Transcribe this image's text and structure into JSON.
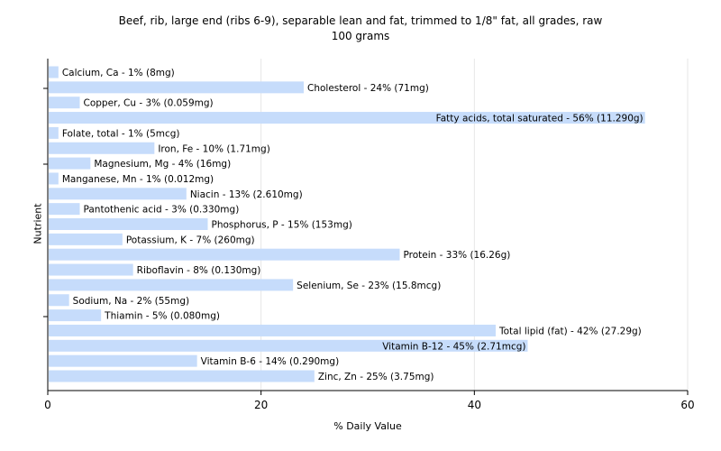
{
  "chart_data": {
    "type": "bar",
    "orientation": "horizontal",
    "title": "Beef, rib, large end (ribs 6-9), separable lean and fat, trimmed to 1/8\" fat, all grades, raw",
    "subtitle": "100 grams",
    "xlabel": "% Daily Value",
    "ylabel": "Nutrient",
    "xlim": [
      0,
      60
    ],
    "xticks": [
      "0",
      "20",
      "40",
      "60"
    ],
    "grid": true,
    "bar_color": "#c6dcfb",
    "categories": [
      "Calcium, Ca",
      "Cholesterol",
      "Copper, Cu",
      "Fatty acids, total saturated",
      "Folate, total",
      "Iron, Fe",
      "Magnesium, Mg",
      "Manganese, Mn",
      "Niacin",
      "Pantothenic acid",
      "Phosphorus, P",
      "Potassium, K",
      "Protein",
      "Riboflavin",
      "Selenium, Se",
      "Sodium, Na",
      "Thiamin",
      "Total lipid (fat)",
      "Vitamin B-12",
      "Vitamin B-6",
      "Zinc, Zn"
    ],
    "values": [
      1,
      24,
      3,
      56,
      1,
      10,
      4,
      1,
      13,
      3,
      15,
      7,
      33,
      8,
      23,
      2,
      5,
      42,
      45,
      14,
      25
    ],
    "labels": [
      "Calcium, Ca - 1% (8mg)",
      "Cholesterol - 24% (71mg)",
      "Copper, Cu - 3% (0.059mg)",
      "Fatty acids, total saturated - 56% (11.290g)",
      "Folate, total - 1% (5mcg)",
      "Iron, Fe - 10% (1.71mg)",
      "Magnesium, Mg - 4% (16mg)",
      "Manganese, Mn - 1% (0.012mg)",
      "Niacin - 13% (2.610mg)",
      "Pantothenic acid - 3% (0.330mg)",
      "Phosphorus, P - 15% (153mg)",
      "Potassium, K - 7% (260mg)",
      "Protein - 33% (16.26g)",
      "Riboflavin - 8% (0.130mg)",
      "Selenium, Se - 23% (15.8mcg)",
      "Sodium, Na - 2% (55mg)",
      "Thiamin - 5% (0.080mg)",
      "Total lipid (fat) - 42% (27.29g)",
      "Vitamin B-12 - 45% (2.71mcg)",
      "Vitamin B-6 - 14% (0.290mg)",
      "Zinc, Zn - 25% (3.75mg)"
    ]
  }
}
